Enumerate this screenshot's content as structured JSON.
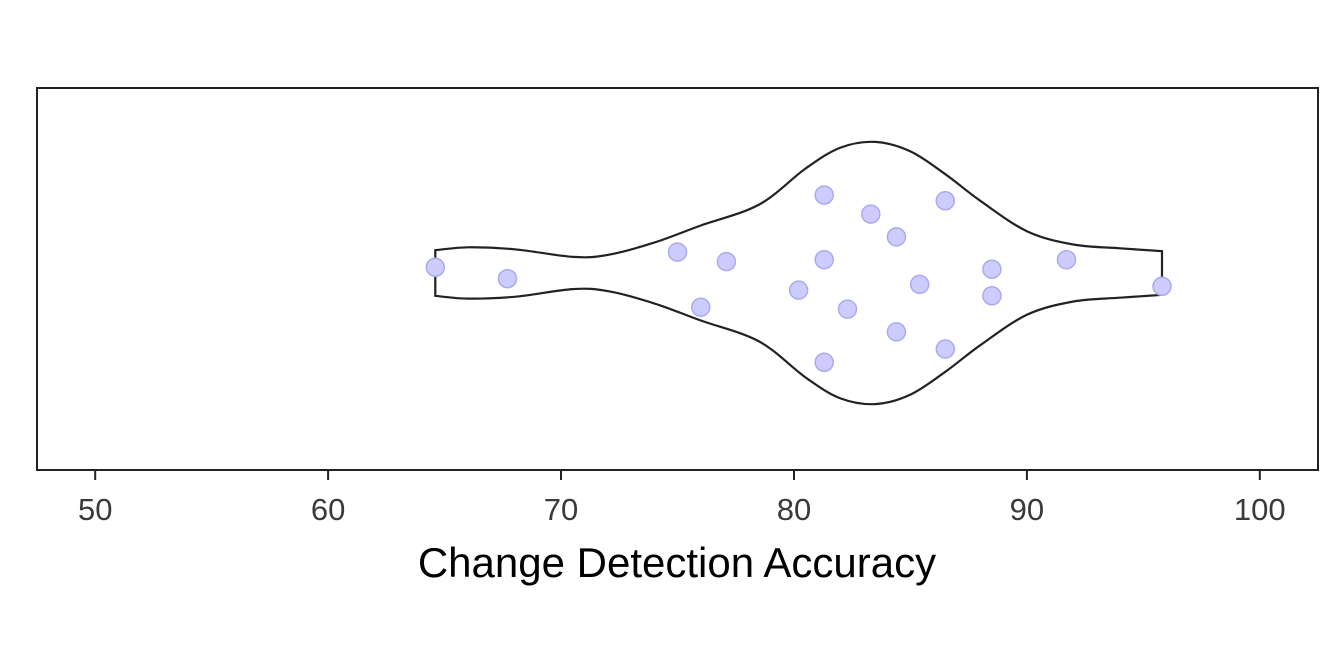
{
  "chart_data": {
    "type": "violin",
    "orientation": "horizontal",
    "xlabel": "Change Detection Accuracy",
    "xlim": [
      47.5,
      102.5
    ],
    "x_ticks": [
      50,
      60,
      70,
      80,
      90,
      100
    ],
    "x_tick_labels": [
      "50",
      "60",
      "70",
      "80",
      "90",
      "100"
    ],
    "grid": false,
    "legend": "none",
    "violin": {
      "min": 64.6,
      "max": 95.8,
      "half_width_profile": [
        {
          "x": 64.6,
          "w": 0.12
        },
        {
          "x": 66.0,
          "w": 0.135
        },
        {
          "x": 68.0,
          "w": 0.125
        },
        {
          "x": 70.5,
          "w": 0.085
        },
        {
          "x": 72.0,
          "w": 0.095
        },
        {
          "x": 74.0,
          "w": 0.16
        },
        {
          "x": 76.0,
          "w": 0.25
        },
        {
          "x": 78.5,
          "w": 0.36
        },
        {
          "x": 80.5,
          "w": 0.55
        },
        {
          "x": 82.0,
          "w": 0.66
        },
        {
          "x": 83.5,
          "w": 0.69
        },
        {
          "x": 85.0,
          "w": 0.64
        },
        {
          "x": 86.5,
          "w": 0.52
        },
        {
          "x": 88.0,
          "w": 0.38
        },
        {
          "x": 90.0,
          "w": 0.22
        },
        {
          "x": 92.0,
          "w": 0.15
        },
        {
          "x": 94.0,
          "w": 0.13
        },
        {
          "x": 95.8,
          "w": 0.115
        }
      ]
    },
    "points": [
      {
        "x": 64.6,
        "jitter": 0.03
      },
      {
        "x": 67.7,
        "jitter": -0.03
      },
      {
        "x": 75.0,
        "jitter": 0.11
      },
      {
        "x": 76.0,
        "jitter": -0.18
      },
      {
        "x": 77.1,
        "jitter": 0.06
      },
      {
        "x": 80.2,
        "jitter": -0.09
      },
      {
        "x": 81.3,
        "jitter": 0.41
      },
      {
        "x": 81.3,
        "jitter": 0.07
      },
      {
        "x": 81.3,
        "jitter": -0.47
      },
      {
        "x": 82.3,
        "jitter": -0.19
      },
      {
        "x": 83.3,
        "jitter": 0.31
      },
      {
        "x": 84.4,
        "jitter": 0.19
      },
      {
        "x": 84.4,
        "jitter": -0.31
      },
      {
        "x": 85.4,
        "jitter": -0.06
      },
      {
        "x": 86.5,
        "jitter": 0.38
      },
      {
        "x": 86.5,
        "jitter": -0.4
      },
      {
        "x": 88.5,
        "jitter": 0.02
      },
      {
        "x": 88.5,
        "jitter": -0.12
      },
      {
        "x": 91.7,
        "jitter": 0.07
      },
      {
        "x": 95.8,
        "jitter": -0.07
      }
    ],
    "colors": {
      "point_fill": "#ccccff",
      "point_stroke": "#aaaaf0",
      "violin_stroke": "#222222",
      "frame": "#222222"
    }
  }
}
